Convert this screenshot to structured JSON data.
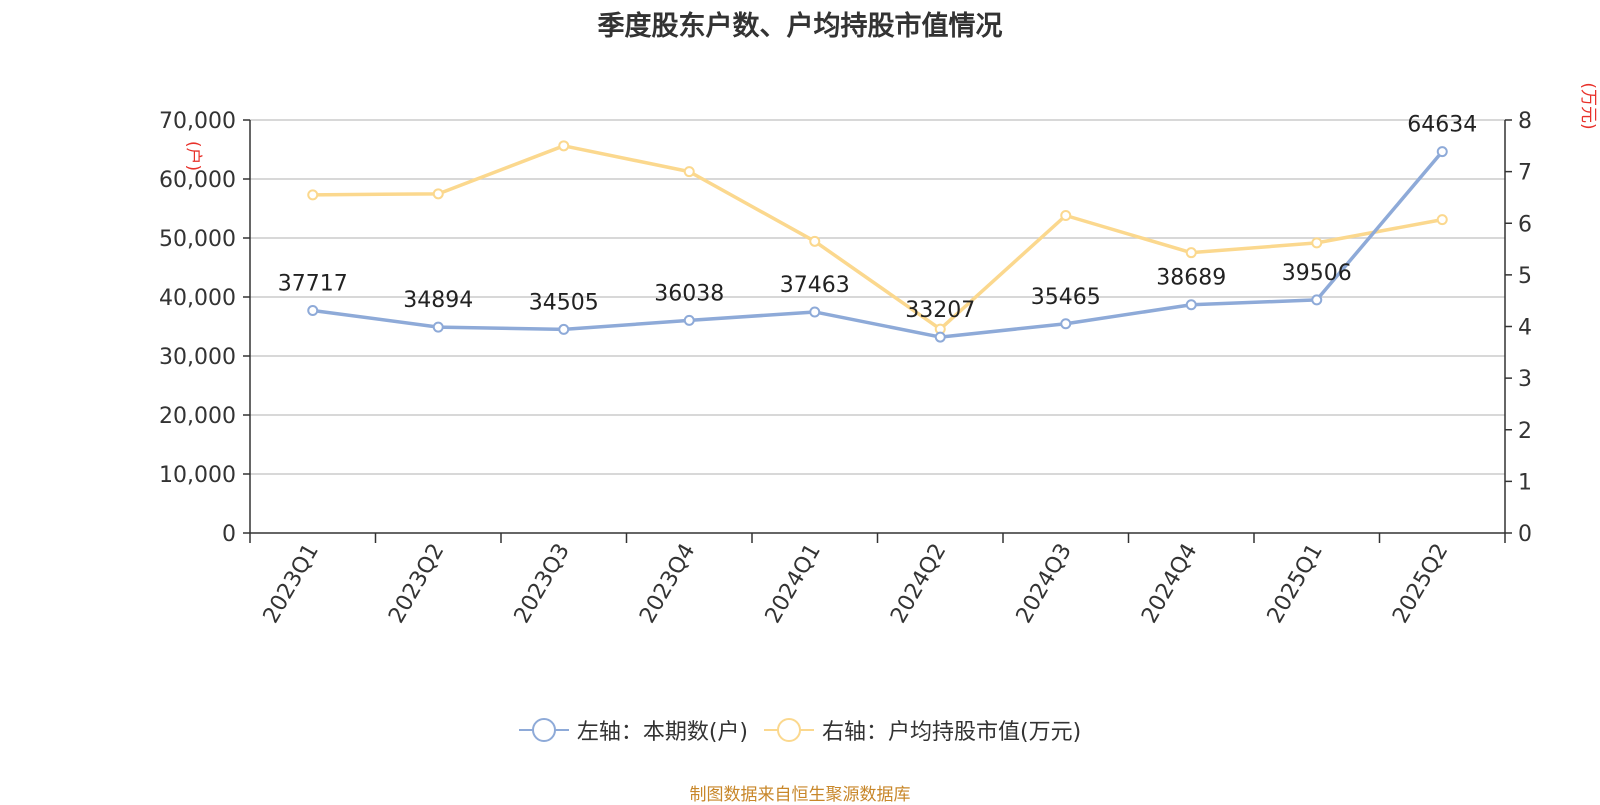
{
  "chart_data": {
    "type": "line",
    "title": "季度股东户数、户均持股市值情况",
    "categories": [
      "2023Q1",
      "2023Q2",
      "2023Q3",
      "2023Q4",
      "2024Q1",
      "2024Q2",
      "2024Q3",
      "2024Q4",
      "2025Q1",
      "2025Q2"
    ],
    "series": [
      {
        "name": "左轴：本期数(户)",
        "axis": "left",
        "color": "#8eaad8",
        "values": [
          37717,
          34894,
          34505,
          36038,
          37463,
          33207,
          35465,
          38689,
          39506,
          64634
        ],
        "data_labels": [
          "37717",
          "34894",
          "34505",
          "36038",
          "37463",
          "33207",
          "35465",
          "38689",
          "39506",
          "64634"
        ]
      },
      {
        "name": "右轴：户均持股市值(万元)",
        "axis": "right",
        "color": "#fbd88e",
        "values": [
          6.55,
          6.57,
          7.5,
          7.0,
          5.65,
          3.95,
          6.15,
          5.43,
          5.62,
          6.07
        ]
      }
    ],
    "y_left": {
      "unit": "(户)",
      "ylim": [
        0,
        70000
      ],
      "ticks": [
        0,
        10000,
        20000,
        30000,
        40000,
        50000,
        60000,
        70000
      ],
      "tick_labels": [
        "0",
        "10,000",
        "20,000",
        "30,000",
        "40,000",
        "50,000",
        "60,000",
        "70,000"
      ]
    },
    "y_right": {
      "unit": "(万元)",
      "ylim": [
        0,
        8
      ],
      "ticks": [
        0,
        1,
        2,
        3,
        4,
        5,
        6,
        7,
        8
      ],
      "tick_labels": [
        "0",
        "1",
        "2",
        "3",
        "4",
        "5",
        "6",
        "7",
        "8"
      ]
    },
    "grid": true,
    "legend_position": "bottom-center",
    "unit_color": "#e8312a",
    "source_note": "制图数据来自恒生聚源数据库"
  }
}
